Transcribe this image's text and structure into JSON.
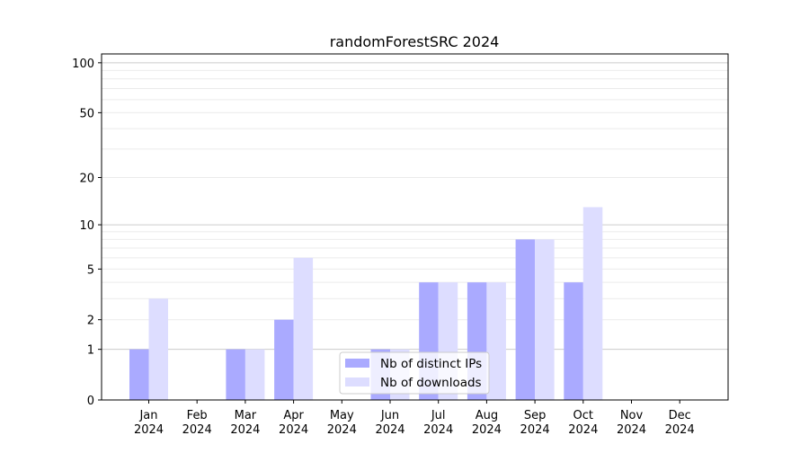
{
  "chart_data": {
    "type": "bar",
    "title": "randomForestSRC 2024",
    "xlabel": "",
    "ylabel": "",
    "yscale": "log10(1+y)",
    "ylim": [
      0,
      113
    ],
    "yticks": [
      0,
      1,
      2,
      5,
      10,
      20,
      50,
      100
    ],
    "grid": true,
    "legend_position": "bottom-center",
    "categories": [
      "Jan\n2024",
      "Feb\n2024",
      "Mar\n2024",
      "Apr\n2024",
      "May\n2024",
      "Jun\n2024",
      "Jul\n2024",
      "Aug\n2024",
      "Sep\n2024",
      "Oct\n2024",
      "Nov\n2024",
      "Dec\n2024"
    ],
    "series": [
      {
        "name": "Nb of distinct IPs",
        "color": "#aaaaff",
        "values": [
          1,
          0,
          1,
          2,
          0,
          1,
          4,
          4,
          8,
          4,
          0,
          0
        ]
      },
      {
        "name": "Nb of downloads",
        "color": "#ddddff",
        "values": [
          3,
          0,
          1,
          6,
          0,
          1,
          4,
          4,
          8,
          13,
          0,
          0
        ]
      }
    ]
  }
}
